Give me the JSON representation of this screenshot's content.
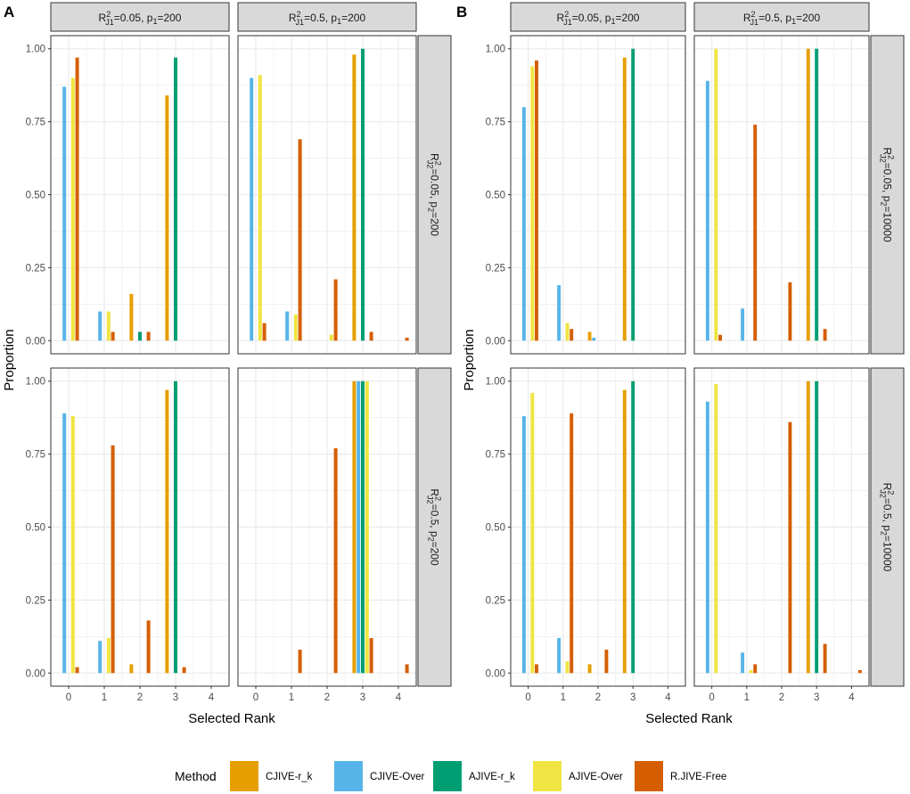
{
  "figure": {
    "panel_labels": [
      "A",
      "B"
    ],
    "x_axis_title": "Selected Rank",
    "y_axis_title": "Proportion",
    "legend_title": "Method"
  },
  "colors": {
    "CJIVE-r_k": "#E69F00",
    "CJIVE-Over": "#56B4E9",
    "AJIVE-r_k": "#009E73",
    "AJIVE-Over": "#F0E442",
    "R.JIVE-Free": "#D55E00",
    "panel_border": "#333333",
    "strip_fill": "#D9D9D9",
    "grid": "#EBEBEB"
  },
  "chart_data": {
    "type": "bar",
    "categories": [
      "0",
      "1",
      "2",
      "3",
      "4"
    ],
    "methods": [
      "CJIVE-r_k",
      "CJIVE-Over",
      "AJIVE-r_k",
      "AJIVE-Over",
      "R.JIVE-Free"
    ],
    "ylim": [
      0,
      1
    ],
    "yticks": [
      "0.00",
      "0.25",
      "0.50",
      "0.75",
      "1.00"
    ],
    "xlabel": "Selected Rank",
    "ylabel": "Proportion",
    "panels": [
      {
        "label": "A",
        "col_strips": [
          {
            "top": "2",
            "left": "R",
            "sub": "J1",
            "rest": "=0.05, p",
            "sub2": "1",
            "end": "=200"
          },
          {
            "top": "2",
            "left": "R",
            "sub": "J1",
            "rest": "=0.5, p",
            "sub2": "1",
            "end": "=200"
          }
        ],
        "row_strips": [
          {
            "top": "2",
            "left": "R",
            "sub": "J2",
            "rest": "=0.05, p",
            "sub2": "2",
            "end": "=200"
          },
          {
            "top": "2",
            "left": "R",
            "sub": "J2",
            "rest": "=0.5, p",
            "sub2": "2",
            "end": "=200"
          }
        ],
        "facets": [
          [
            {
              "series": {
                "CJIVE-r_k": [
                  0.0,
                  0.0,
                  0.16,
                  0.84,
                  0.0
                ],
                "CJIVE-Over": [
                  0.87,
                  0.1,
                  0.0,
                  0.0,
                  0.0
                ],
                "AJIVE-r_k": [
                  0.0,
                  0.0,
                  0.03,
                  0.97,
                  0.0
                ],
                "AJIVE-Over": [
                  0.9,
                  0.1,
                  0.0,
                  0.0,
                  0.0
                ],
                "R.JIVE-Free": [
                  0.97,
                  0.03,
                  0.03,
                  0.0,
                  0.0
                ]
              }
            },
            {
              "series": {
                "CJIVE-r_k": [
                  0.0,
                  0.0,
                  0.0,
                  0.98,
                  0.0
                ],
                "CJIVE-Over": [
                  0.9,
                  0.1,
                  0.0,
                  0.0,
                  0.0
                ],
                "AJIVE-r_k": [
                  0.0,
                  0.0,
                  0.0,
                  1.0,
                  0.0
                ],
                "AJIVE-Over": [
                  0.91,
                  0.09,
                  0.02,
                  0.0,
                  0.0
                ],
                "R.JIVE-Free": [
                  0.06,
                  0.69,
                  0.21,
                  0.03,
                  0.01
                ]
              }
            }
          ],
          [
            {
              "series": {
                "CJIVE-r_k": [
                  0.0,
                  0.0,
                  0.03,
                  0.97,
                  0.0
                ],
                "CJIVE-Over": [
                  0.89,
                  0.11,
                  0.0,
                  0.0,
                  0.0
                ],
                "AJIVE-r_k": [
                  0.0,
                  0.0,
                  0.0,
                  1.0,
                  0.0
                ],
                "AJIVE-Over": [
                  0.88,
                  0.12,
                  0.0,
                  0.0,
                  0.0
                ],
                "R.JIVE-Free": [
                  0.02,
                  0.78,
                  0.18,
                  0.02,
                  0.0
                ]
              }
            },
            {
              "series": {
                "CJIVE-r_k": [
                  0.0,
                  0.0,
                  0.0,
                  1.0,
                  0.0
                ],
                "CJIVE-Over": [
                  0.0,
                  0.0,
                  0.0,
                  1.0,
                  0.0
                ],
                "AJIVE-r_k": [
                  0.0,
                  0.0,
                  0.0,
                  1.0,
                  0.0
                ],
                "AJIVE-Over": [
                  0.0,
                  0.0,
                  0.0,
                  1.0,
                  0.0
                ],
                "R.JIVE-Free": [
                  0.0,
                  0.08,
                  0.77,
                  0.12,
                  0.03
                ]
              }
            }
          ]
        ]
      },
      {
        "label": "B",
        "col_strips": [
          {
            "top": "2",
            "left": "R",
            "sub": "J1",
            "rest": "=0.05, p",
            "sub2": "1",
            "end": "=200"
          },
          {
            "top": "2",
            "left": "R",
            "sub": "J1",
            "rest": "=0.5, p",
            "sub2": "1",
            "end": "=200"
          }
        ],
        "row_strips": [
          {
            "top": "2",
            "left": "R",
            "sub": "J2",
            "rest": "=0.05, p",
            "sub2": "2",
            "end": "=10000"
          },
          {
            "top": "2",
            "left": "R",
            "sub": "J2",
            "rest": "=0.5, p",
            "sub2": "2",
            "end": "=10000"
          }
        ],
        "facets": [
          [
            {
              "series": {
                "CJIVE-r_k": [
                  0.0,
                  0.0,
                  0.03,
                  0.97,
                  0.0
                ],
                "CJIVE-Over": [
                  0.8,
                  0.19,
                  0.01,
                  0.0,
                  0.0
                ],
                "AJIVE-r_k": [
                  0.0,
                  0.0,
                  0.0,
                  1.0,
                  0.0
                ],
                "AJIVE-Over": [
                  0.94,
                  0.06,
                  0.0,
                  0.0,
                  0.0
                ],
                "R.JIVE-Free": [
                  0.96,
                  0.04,
                  0.0,
                  0.0,
                  0.0
                ]
              }
            },
            {
              "series": {
                "CJIVE-r_k": [
                  0.0,
                  0.0,
                  0.0,
                  1.0,
                  0.0
                ],
                "CJIVE-Over": [
                  0.89,
                  0.11,
                  0.0,
                  0.0,
                  0.0
                ],
                "AJIVE-r_k": [
                  0.0,
                  0.0,
                  0.0,
                  1.0,
                  0.0
                ],
                "AJIVE-Over": [
                  1.0,
                  0.0,
                  0.0,
                  0.0,
                  0.0
                ],
                "R.JIVE-Free": [
                  0.02,
                  0.74,
                  0.2,
                  0.04,
                  0.0
                ]
              }
            }
          ],
          [
            {
              "series": {
                "CJIVE-r_k": [
                  0.0,
                  0.0,
                  0.03,
                  0.97,
                  0.0
                ],
                "CJIVE-Over": [
                  0.88,
                  0.12,
                  0.0,
                  0.0,
                  0.0
                ],
                "AJIVE-r_k": [
                  0.0,
                  0.0,
                  0.0,
                  1.0,
                  0.0
                ],
                "AJIVE-Over": [
                  0.96,
                  0.04,
                  0.0,
                  0.0,
                  0.0
                ],
                "R.JIVE-Free": [
                  0.03,
                  0.89,
                  0.08,
                  0.0,
                  0.0
                ]
              }
            },
            {
              "series": {
                "CJIVE-r_k": [
                  0.0,
                  0.0,
                  0.0,
                  1.0,
                  0.0
                ],
                "CJIVE-Over": [
                  0.93,
                  0.07,
                  0.0,
                  0.0,
                  0.0
                ],
                "AJIVE-r_k": [
                  0.0,
                  0.0,
                  0.0,
                  1.0,
                  0.0
                ],
                "AJIVE-Over": [
                  0.99,
                  0.01,
                  0.0,
                  0.0,
                  0.0
                ],
                "R.JIVE-Free": [
                  0.0,
                  0.03,
                  0.86,
                  0.1,
                  0.01
                ]
              }
            }
          ]
        ]
      }
    ]
  }
}
